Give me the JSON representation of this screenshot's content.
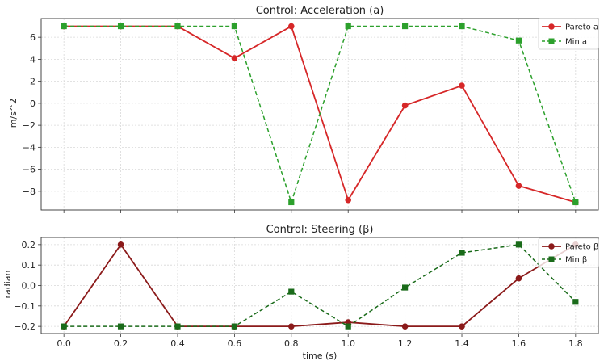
{
  "chart_data": [
    {
      "type": "line",
      "title": "Control: Acceleration (a)",
      "xlabel": "",
      "ylabel": "m/s^2",
      "x": [
        0.0,
        0.2,
        0.4,
        0.6,
        0.8,
        1.0,
        1.2,
        1.4,
        1.6,
        1.8
      ],
      "xlim": [
        -0.08,
        1.88
      ],
      "ylim": [
        -9.7,
        7.7
      ],
      "xticks": [
        0.0,
        0.2,
        0.4,
        0.6,
        0.8,
        1.0,
        1.2,
        1.4,
        1.6,
        1.8
      ],
      "yticks": [
        6,
        4,
        2,
        0,
        -2,
        -4,
        -6,
        -8
      ],
      "ytick_labels": [
        "6",
        "4",
        "2",
        "0",
        "−2",
        "−4",
        "−6",
        "−8"
      ],
      "grid": true,
      "legend": "top-right",
      "series": [
        {
          "name": "Pareto a",
          "color": "#d62728",
          "marker": "circle",
          "linestyle": "solid",
          "values": [
            7,
            7,
            7,
            4.1,
            7,
            -8.8,
            -0.2,
            1.6,
            -7.5,
            -9.0
          ]
        },
        {
          "name": "Min a",
          "color": "#2ca02c",
          "marker": "square",
          "linestyle": "dashed",
          "values": [
            7,
            7,
            7,
            7,
            -9,
            7,
            7,
            7,
            5.7,
            -9.0
          ]
        }
      ]
    },
    {
      "type": "line",
      "title": "Control: Steering (β)",
      "xlabel": "time (s)",
      "ylabel": "radian",
      "x": [
        0.0,
        0.2,
        0.4,
        0.6,
        0.8,
        1.0,
        1.2,
        1.4,
        1.6,
        1.8
      ],
      "xlim": [
        -0.08,
        1.88
      ],
      "ylim": [
        -0.235,
        0.235
      ],
      "xticks": [
        0.0,
        0.2,
        0.4,
        0.6,
        0.8,
        1.0,
        1.2,
        1.4,
        1.6,
        1.8
      ],
      "xtick_labels": [
        "0.0",
        "0.2",
        "0.4",
        "0.6",
        "0.8",
        "1.0",
        "1.2",
        "1.4",
        "1.6",
        "1.8"
      ],
      "yticks": [
        0.2,
        0.1,
        0.0,
        -0.1,
        -0.2
      ],
      "ytick_labels": [
        "0.2",
        "0.1",
        "0.0",
        "−0.1",
        "−0.2"
      ],
      "grid": true,
      "legend": "top-right",
      "series": [
        {
          "name": "Pareto β",
          "color": "#8b1a1a",
          "marker": "circle",
          "linestyle": "solid",
          "values": [
            -0.2,
            0.2,
            -0.2,
            -0.2,
            -0.2,
            -0.18,
            -0.2,
            -0.2,
            0.035,
            0.2
          ]
        },
        {
          "name": "Min β",
          "color": "#1a6b1a",
          "marker": "square",
          "linestyle": "dashed",
          "values": [
            -0.2,
            -0.2,
            -0.2,
            -0.2,
            -0.03,
            -0.2,
            -0.01,
            0.16,
            0.2,
            -0.08
          ]
        }
      ]
    }
  ]
}
